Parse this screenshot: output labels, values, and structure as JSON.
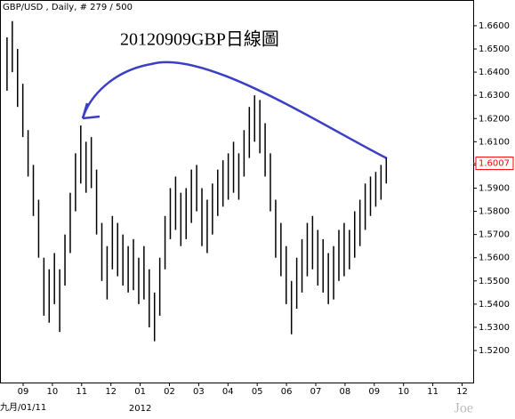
{
  "chart_data": {
    "type": "ohlc",
    "title": "GBP/USD , Daily, # 279 / 500",
    "annotation": "20120909GBP日線圖",
    "x_note": "九月/01/11",
    "x_year": "2012",
    "watermark": "Joe",
    "color": "#000000",
    "arrow_color": "#3b3fc4",
    "last_color": "#ff0000",
    "last": 1.6007,
    "xlim": [
      -0.79,
      15.38
    ],
    "ylim": [
      1.5062,
      1.6711
    ],
    "xticks": [
      {
        "value": 0,
        "label": "09"
      },
      {
        "value": 1,
        "label": "10"
      },
      {
        "value": 2,
        "label": "11"
      },
      {
        "value": 3,
        "label": "12"
      },
      {
        "value": 4,
        "label": "01"
      },
      {
        "value": 5,
        "label": "02"
      },
      {
        "value": 6,
        "label": "03"
      },
      {
        "value": 7,
        "label": "04"
      },
      {
        "value": 8,
        "label": "05"
      },
      {
        "value": 9,
        "label": "06"
      },
      {
        "value": 10,
        "label": "07"
      },
      {
        "value": 11,
        "label": "08"
      },
      {
        "value": 12,
        "label": "09"
      },
      {
        "value": 13,
        "label": "10"
      },
      {
        "value": 14,
        "label": "11"
      },
      {
        "value": 15,
        "label": "12"
      }
    ],
    "yticks": [
      {
        "value": 1.52,
        "label": "1.5200"
      },
      {
        "value": 1.53,
        "label": "1.5300"
      },
      {
        "value": 1.54,
        "label": "1.5400"
      },
      {
        "value": 1.55,
        "label": "1.5500"
      },
      {
        "value": 1.56,
        "label": "1.5600"
      },
      {
        "value": 1.57,
        "label": "1.5700"
      },
      {
        "value": 1.58,
        "label": "1.5800"
      },
      {
        "value": 1.59,
        "label": "1.5900"
      },
      {
        "value": 1.6,
        "label": "1.6000"
      },
      {
        "value": 1.61,
        "label": "1.6100"
      },
      {
        "value": 1.62,
        "label": "1.6200"
      },
      {
        "value": 1.63,
        "label": "1.6300"
      },
      {
        "value": 1.64,
        "label": "1.6400"
      },
      {
        "value": 1.65,
        "label": "1.6500"
      },
      {
        "value": 1.66,
        "label": "1.6600"
      }
    ],
    "x": [
      -0.55,
      -0.37,
      -0.19,
      -0.01,
      0.17,
      0.35,
      0.53,
      0.71,
      0.89,
      1.07,
      1.25,
      1.43,
      1.61,
      1.79,
      1.97,
      2.15,
      2.33,
      2.51,
      2.69,
      2.87,
      3.05,
      3.23,
      3.41,
      3.59,
      3.77,
      3.95,
      4.13,
      4.31,
      4.49,
      4.67,
      4.85,
      5.03,
      5.21,
      5.39,
      5.57,
      5.75,
      5.93,
      6.11,
      6.29,
      6.47,
      6.65,
      6.83,
      7.01,
      7.19,
      7.37,
      7.55,
      7.73,
      7.91,
      8.09,
      8.27,
      8.45,
      8.63,
      8.81,
      8.99,
      9.17,
      9.35,
      9.53,
      9.71,
      9.89,
      10.07,
      10.25,
      10.43,
      10.61,
      10.79,
      10.97,
      11.15,
      11.33,
      11.51,
      11.69,
      11.87,
      12.05,
      12.23,
      12.41
    ],
    "highs": [
      1.655,
      1.662,
      1.65,
      1.635,
      1.615,
      1.6,
      1.585,
      1.56,
      1.555,
      1.562,
      1.555,
      1.57,
      1.588,
      1.605,
      1.617,
      1.61,
      1.612,
      1.598,
      1.575,
      1.565,
      1.578,
      1.575,
      1.57,
      1.565,
      1.568,
      1.56,
      1.565,
      1.555,
      1.545,
      1.56,
      1.578,
      1.59,
      1.595,
      1.588,
      1.59,
      1.598,
      1.6,
      1.59,
      1.585,
      1.592,
      1.598,
      1.602,
      1.605,
      1.61,
      1.605,
      1.615,
      1.625,
      1.63,
      1.628,
      1.618,
      1.605,
      1.585,
      1.575,
      1.565,
      1.55,
      1.56,
      1.568,
      1.575,
      1.578,
      1.572,
      1.568,
      1.562,
      1.565,
      1.572,
      1.575,
      1.572,
      1.58,
      1.585,
      1.592,
      1.595,
      1.597,
      1.6,
      1.603
    ],
    "lows": [
      1.632,
      1.64,
      1.625,
      1.612,
      1.595,
      1.578,
      1.56,
      1.535,
      1.532,
      1.54,
      1.528,
      1.548,
      1.562,
      1.58,
      1.592,
      1.588,
      1.59,
      1.57,
      1.55,
      1.542,
      1.555,
      1.552,
      1.548,
      1.545,
      1.546,
      1.54,
      1.542,
      1.53,
      1.524,
      1.535,
      1.555,
      1.568,
      1.572,
      1.565,
      1.568,
      1.575,
      1.58,
      1.565,
      1.562,
      1.57,
      1.578,
      1.582,
      1.585,
      1.588,
      1.585,
      1.595,
      1.603,
      1.61,
      1.605,
      1.595,
      1.58,
      1.56,
      1.552,
      1.54,
      1.527,
      1.538,
      1.545,
      1.552,
      1.555,
      1.548,
      1.545,
      1.54,
      1.542,
      1.55,
      1.552,
      1.555,
      1.56,
      1.565,
      1.572,
      1.578,
      1.582,
      1.585,
      1.592
    ]
  }
}
